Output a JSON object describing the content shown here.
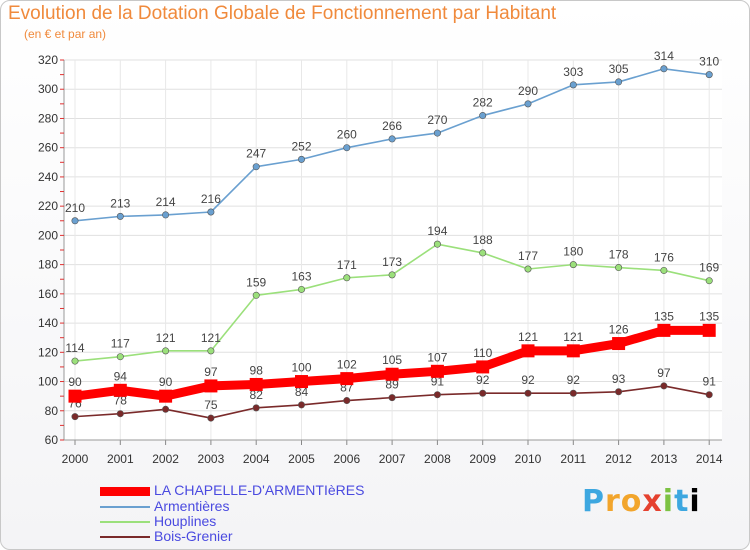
{
  "chart_data": {
    "type": "line",
    "title": "Evolution de la Dotation Globale de Fonctionnement par Habitant",
    "subtitle": "(en € et par an)",
    "xlabel": "",
    "ylabel": "",
    "x": [
      "2000",
      "2001",
      "2002",
      "2003",
      "2004",
      "2005",
      "2006",
      "2007",
      "2008",
      "2009",
      "2010",
      "2011",
      "2012",
      "2013",
      "2014"
    ],
    "ylim": [
      60,
      320
    ],
    "yticks": [
      60,
      80,
      100,
      120,
      140,
      160,
      180,
      200,
      220,
      240,
      260,
      280,
      300,
      320
    ],
    "grid": true,
    "legend_position": "bottom-left",
    "series": [
      {
        "name": "LA CHAPELLE-D'ARMENTIèRES",
        "color": "#ff0000",
        "values": [
          90,
          94,
          90,
          97,
          98,
          100,
          102,
          105,
          107,
          110,
          121,
          121,
          126,
          135,
          135
        ]
      },
      {
        "name": "Armentières",
        "color": "#6aa0d0",
        "values": [
          210,
          213,
          214,
          216,
          247,
          252,
          260,
          266,
          270,
          282,
          290,
          303,
          305,
          314,
          310
        ]
      },
      {
        "name": "Houplines",
        "color": "#9be07b",
        "values": [
          114,
          117,
          121,
          121,
          159,
          163,
          171,
          173,
          194,
          188,
          177,
          180,
          178,
          176,
          169
        ]
      },
      {
        "name": "Bois-Grenier",
        "color": "#7a2a2a",
        "values": [
          76,
          78,
          81,
          75,
          82,
          84,
          87,
          89,
          91,
          92,
          92,
          92,
          93,
          97,
          91
        ]
      }
    ]
  },
  "brand": {
    "letters": [
      "P",
      "r",
      "o",
      "x",
      "i",
      "t",
      "i"
    ]
  }
}
